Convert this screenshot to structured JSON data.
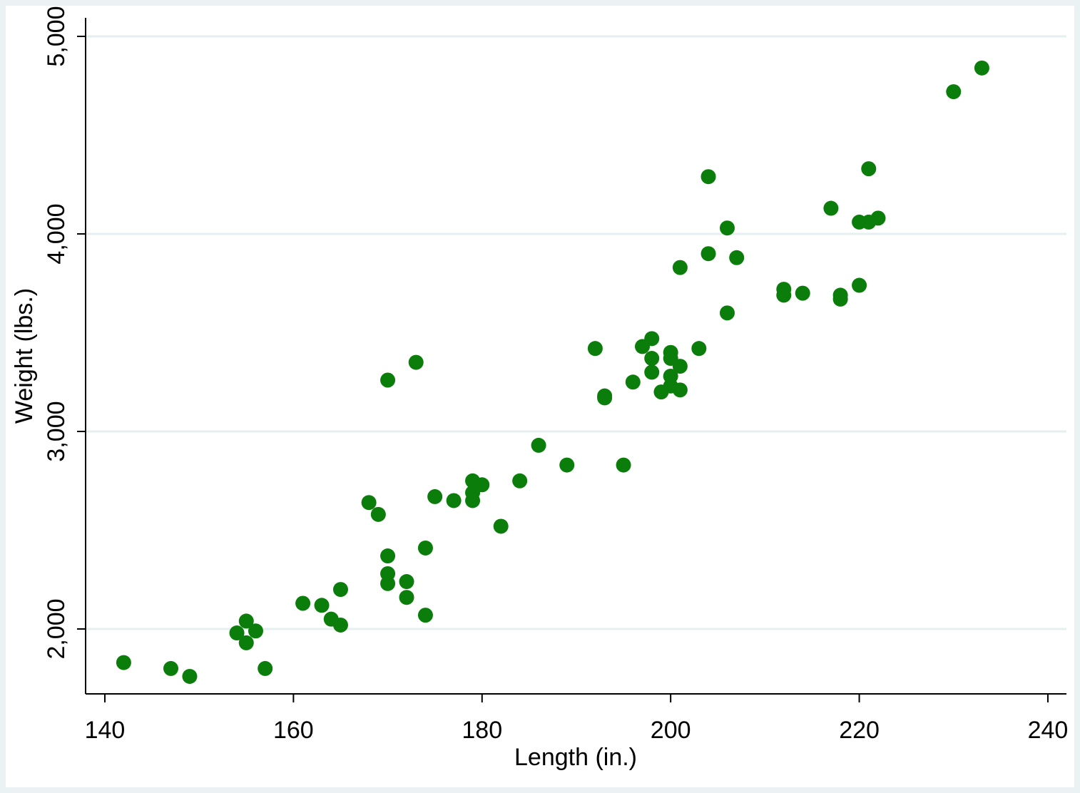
{
  "chart_data": {
    "type": "scatter",
    "x_label": "Length (in.)",
    "y_label": "Weight (lbs.)",
    "color": "#0b7d0b",
    "grid": true,
    "xlim": [
      137.96,
      241.97
    ],
    "ylim": [
      1671.5,
      5094
    ],
    "xticks": [
      140,
      160,
      180,
      200,
      220,
      240
    ],
    "yticks": [
      {
        "value": 2000,
        "label": "2,000"
      },
      {
        "value": 3000,
        "label": "3,000"
      },
      {
        "value": 4000,
        "label": "4,000"
      },
      {
        "value": 5000,
        "label": "5,000"
      }
    ],
    "x": [
      142,
      147,
      149,
      154,
      155,
      155,
      156,
      157,
      161,
      163,
      164,
      165,
      165,
      168,
      169,
      170,
      170,
      170,
      170,
      172,
      172,
      173,
      174,
      174,
      175,
      177,
      179,
      179,
      179,
      180,
      182,
      184,
      186,
      189,
      192,
      193,
      193,
      195,
      196,
      197,
      198,
      198,
      198,
      199,
      200,
      200,
      200,
      200,
      201,
      201,
      201,
      203,
      204,
      204,
      206,
      206,
      207,
      212,
      212,
      214,
      217,
      218,
      218,
      220,
      220,
      221,
      221,
      222,
      230,
      233
    ],
    "y": [
      1830,
      1800,
      1760,
      1980,
      2040,
      1930,
      1990,
      1800,
      2130,
      2120,
      2050,
      2020,
      2200,
      2640,
      2580,
      3260,
      2370,
      2280,
      2230,
      2240,
      2160,
      3350,
      2410,
      2070,
      2670,
      2650,
      2750,
      2690,
      2650,
      2730,
      2520,
      2750,
      2930,
      2830,
      3420,
      3180,
      3170,
      2830,
      3250,
      3430,
      3470,
      3370,
      3300,
      3200,
      3400,
      3370,
      3280,
      3230,
      3830,
      3330,
      3210,
      3420,
      4290,
      3900,
      4030,
      3600,
      3880,
      3720,
      3690,
      3700,
      4130,
      3690,
      3670,
      4060,
      3740,
      4330,
      4060,
      4080,
      4720,
      4840
    ]
  }
}
